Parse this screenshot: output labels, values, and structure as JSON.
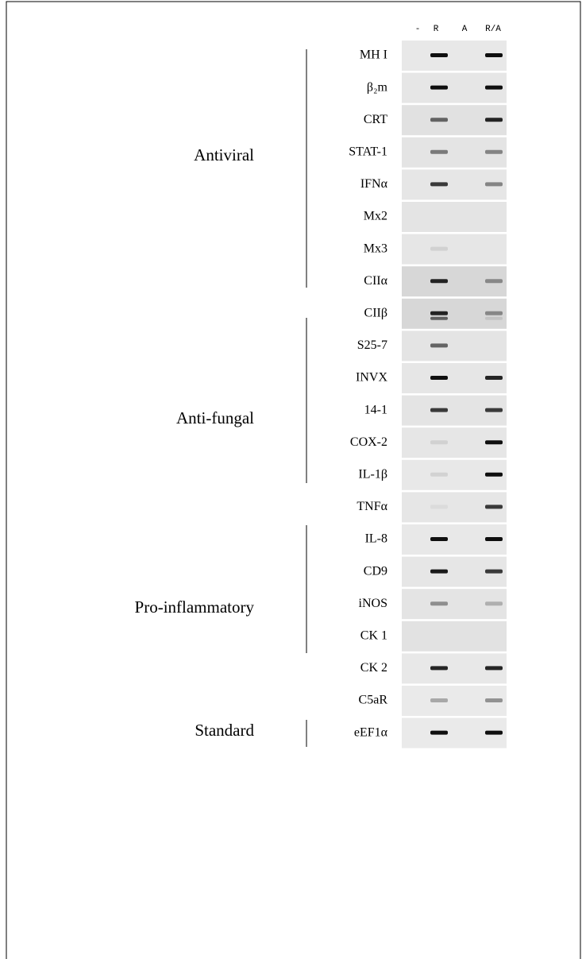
{
  "lanes": [
    "-",
    "R",
    "A",
    "R/A"
  ],
  "groups": [
    "Antiviral",
    "Anti-fungal",
    "Pro-inflammatory",
    "Standard"
  ],
  "genes": [
    "MH I",
    "β₂m",
    "CRT",
    "STAT-1",
    "IFNα",
    "Mx2",
    "Mx3",
    "CIIα",
    "CIIβ",
    "S25-7",
    "INVX",
    "14-1",
    "COX-2",
    "IL-1β",
    "TNFα",
    "IL-8",
    "CD9",
    "iNOS",
    "CK 1",
    "CK 2",
    "C5aR",
    "eEF1α"
  ]
}
